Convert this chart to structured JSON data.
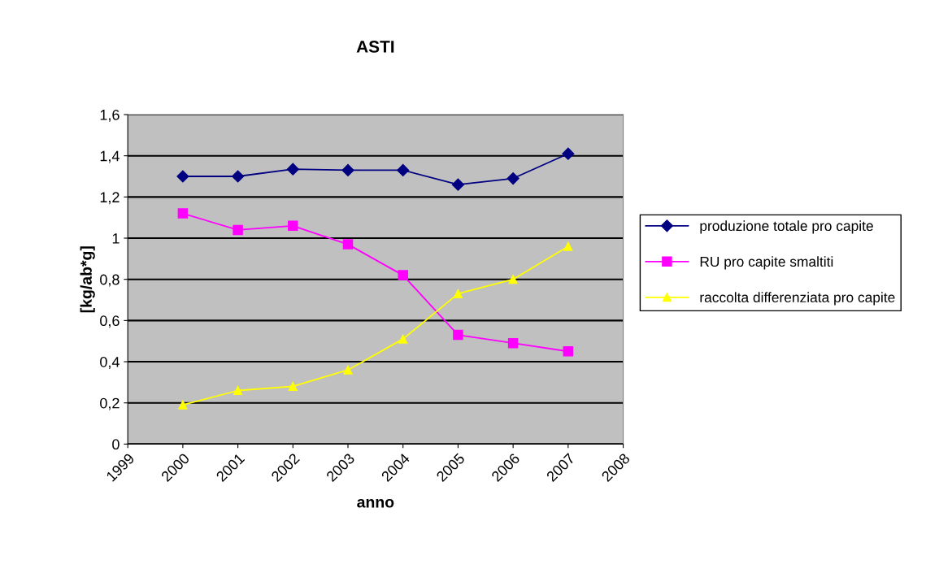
{
  "chart_data": {
    "type": "line",
    "title": "ASTI",
    "xlabel": "anno",
    "ylabel": "[kg/ab*g]",
    "x": [
      2000,
      2001,
      2002,
      2003,
      2004,
      2005,
      2006,
      2007
    ],
    "series": [
      {
        "name": "produzione totale pro capite",
        "color": "#000080",
        "marker": "diamond",
        "values": [
          1.3,
          1.3,
          1.335,
          1.33,
          1.33,
          1.26,
          1.29,
          1.41
        ]
      },
      {
        "name": "RU pro capite smaltiti",
        "color": "#ff00ff",
        "marker": "square",
        "values": [
          1.12,
          1.04,
          1.06,
          0.97,
          0.82,
          0.53,
          0.49,
          0.45
        ]
      },
      {
        "name": "raccolta differenziata pro capite",
        "color": "#ffff00",
        "marker": "triangle",
        "values": [
          0.19,
          0.26,
          0.28,
          0.36,
          0.51,
          0.73,
          0.8,
          0.96
        ]
      }
    ],
    "xlim": [
      1999,
      2008
    ],
    "xticks": [
      1999,
      2000,
      2001,
      2002,
      2003,
      2004,
      2005,
      2006,
      2007,
      2008
    ],
    "ylim": [
      0,
      1.6
    ],
    "yticks": [
      0,
      {
        "value": 0.2,
        "label": "0,2"
      },
      {
        "value": 0.4,
        "label": "0,4"
      },
      {
        "value": 0.6,
        "label": "0,6"
      },
      {
        "value": 0.8,
        "label": "0,8"
      },
      1,
      {
        "value": 1.2,
        "label": "1,2"
      },
      {
        "value": 1.4,
        "label": "1,4"
      },
      {
        "value": 1.6,
        "label": "1,6"
      }
    ],
    "grid": "y",
    "legend": "right",
    "line_style": "solid"
  }
}
